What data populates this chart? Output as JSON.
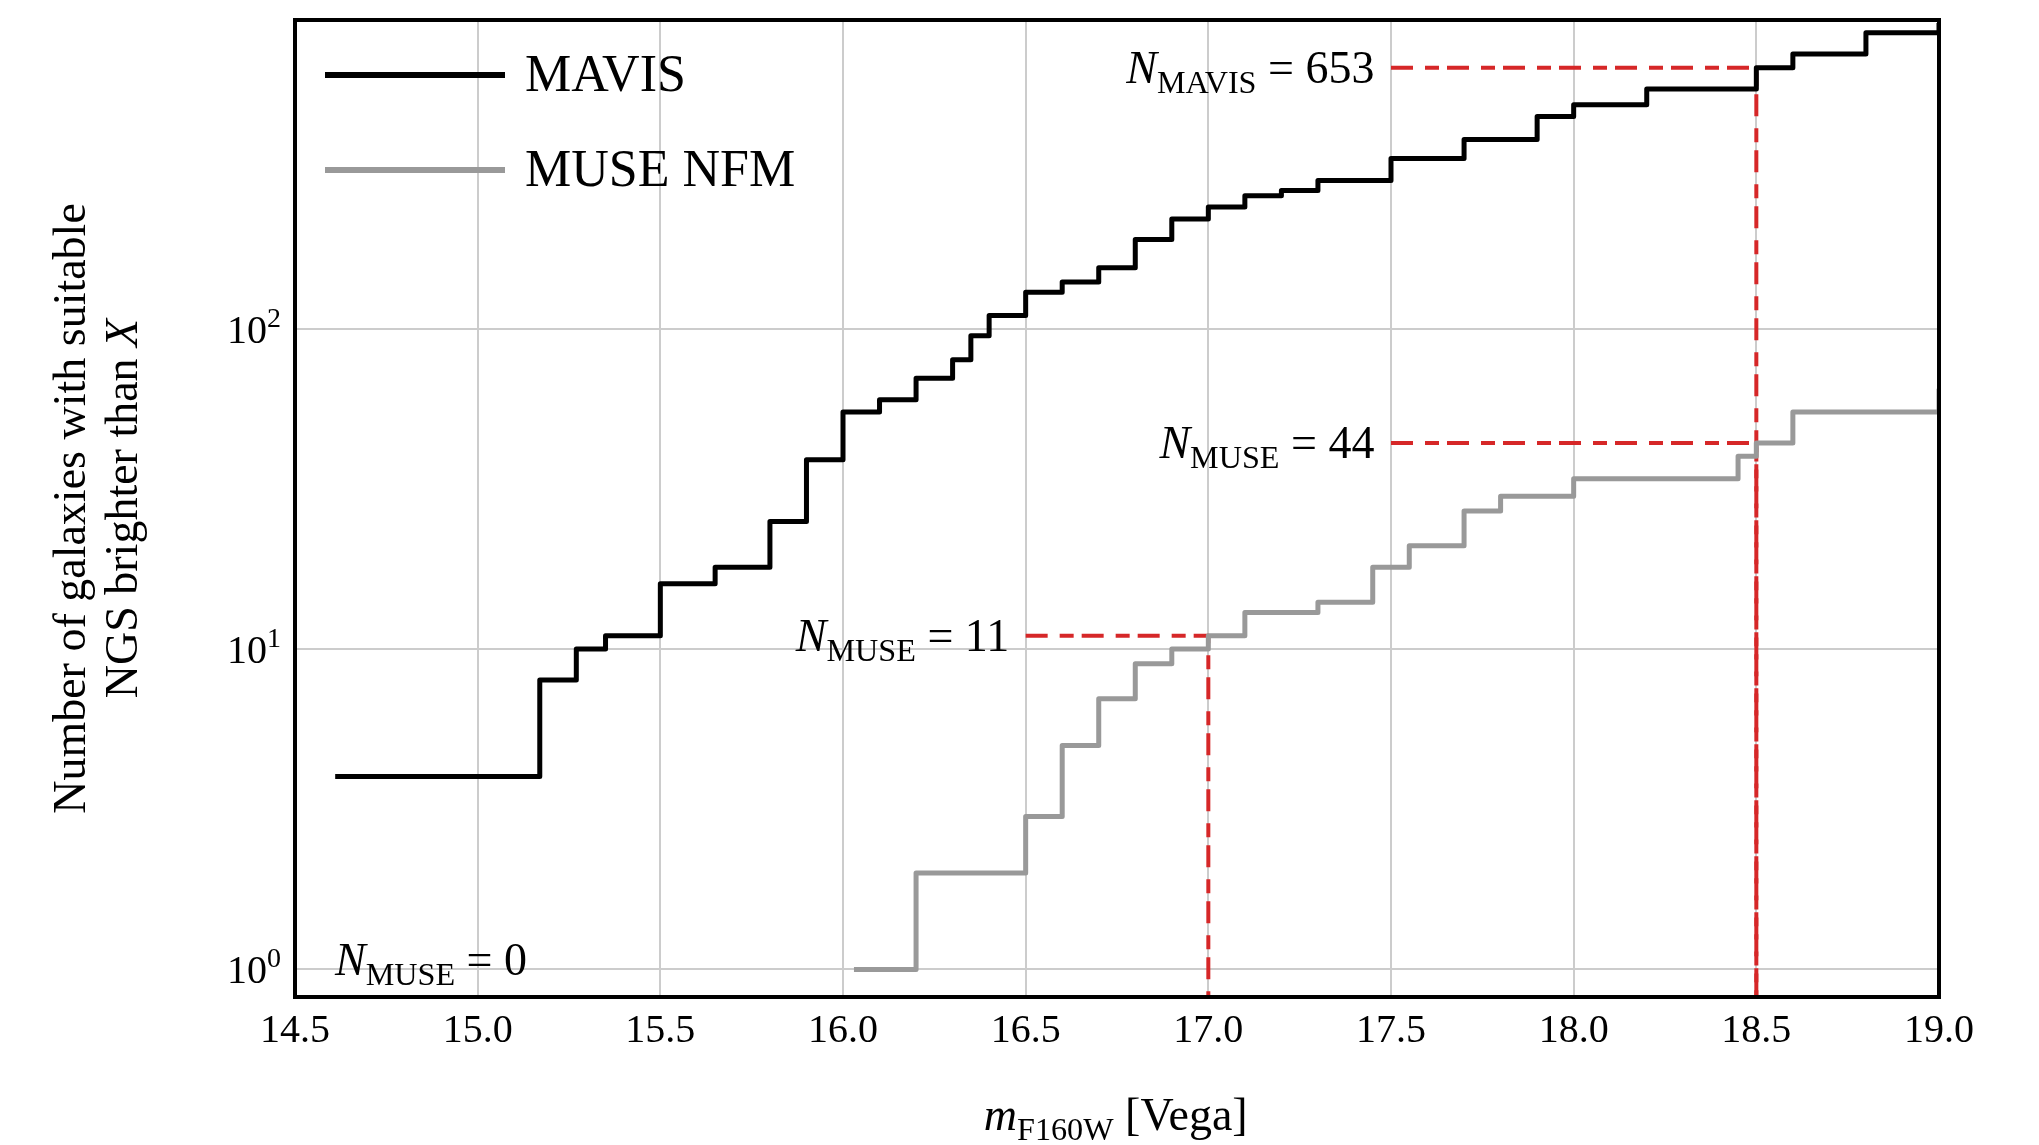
{
  "chart_data": {
    "type": "step",
    "xlabel": "m$_{F160W}$ [Vega]",
    "ylabel": "Number of galaxies with suitable\nNGS brighter than X",
    "log": "y",
    "grid": true,
    "legend": "top left",
    "line_style": "solid",
    "marker": "none",
    "xlim": [
      14.5,
      19.0
    ],
    "xticks": [
      {
        "value": 14.5,
        "label": "14.5"
      },
      {
        "value": 15.0,
        "label": "15.0"
      },
      {
        "value": 15.5,
        "label": "15.5"
      },
      {
        "value": 16.0,
        "label": "16.0"
      },
      {
        "value": 16.5,
        "label": "16.5"
      },
      {
        "value": 17.0,
        "label": "17.0"
      },
      {
        "value": 17.5,
        "label": "17.5"
      },
      {
        "value": 18.0,
        "label": "18.0"
      },
      {
        "value": 18.5,
        "label": "18.5"
      },
      {
        "value": 19.0,
        "label": "19.0"
      }
    ],
    "ylim": [
      0.82,
      920
    ],
    "yticks": [
      {
        "value": 1,
        "label": "10$^{0}$"
      },
      {
        "value": 10,
        "label": "10$^{1}$"
      },
      {
        "value": 100,
        "label": "10$^{2}$"
      }
    ],
    "series": [
      {
        "name": "MAVIS",
        "color": "#000000",
        "x": [
          14.61,
          15.17,
          15.27,
          15.35,
          15.5,
          15.65,
          15.8,
          15.9,
          16.0,
          16.1,
          16.2,
          16.3,
          16.35,
          16.4,
          16.5,
          16.6,
          16.7,
          16.8,
          16.9,
          17.0,
          17.1,
          17.2,
          17.3,
          17.5,
          17.7,
          17.9,
          18.0,
          18.2,
          18.5,
          18.6,
          18.8,
          19.0
        ],
        "values": [
          4,
          8,
          10,
          11,
          16,
          18,
          25,
          39,
          55,
          60,
          70,
          80,
          95,
          110,
          130,
          140,
          155,
          190,
          220,
          240,
          260,
          270,
          290,
          340,
          390,
          460,
          500,
          560,
          653,
          720,
          840,
          900
        ]
      },
      {
        "name": "MUSE NFM",
        "color": "#999999",
        "x": [
          16.03,
          16.2,
          16.5,
          16.6,
          16.7,
          16.8,
          16.9,
          17.0,
          17.1,
          17.3,
          17.45,
          17.55,
          17.7,
          17.8,
          18.0,
          18.45,
          18.5,
          18.6,
          19.0
        ],
        "values": [
          1,
          2,
          3,
          5,
          7,
          9,
          10,
          11,
          13,
          14,
          18,
          21,
          27,
          30,
          34,
          40,
          44,
          55,
          65
        ]
      },
      {
        "type": "line",
        "color": "#d62728",
        "line_style": "dashed",
        "x": [
          17.5,
          18.5,
          18.5
        ],
        "values": [
          653,
          653,
          0.82
        ]
      },
      {
        "type": "line",
        "color": "#d62728",
        "line_style": "dashed",
        "x": [
          17.5,
          18.5,
          18.5
        ],
        "values": [
          44,
          44,
          0.82
        ]
      },
      {
        "type": "line",
        "color": "#d62728",
        "line_style": "dashed",
        "x": [
          16.5,
          17.0,
          17.0
        ],
        "values": [
          11,
          11,
          0.82
        ]
      }
    ],
    "annotations": [
      "N$_{MAVIS}$ = 653",
      "N$_{MUSE}$ = 44",
      "N$_{MUSE}$ = 11",
      "N$_{MUSE}$ = 0"
    ]
  }
}
